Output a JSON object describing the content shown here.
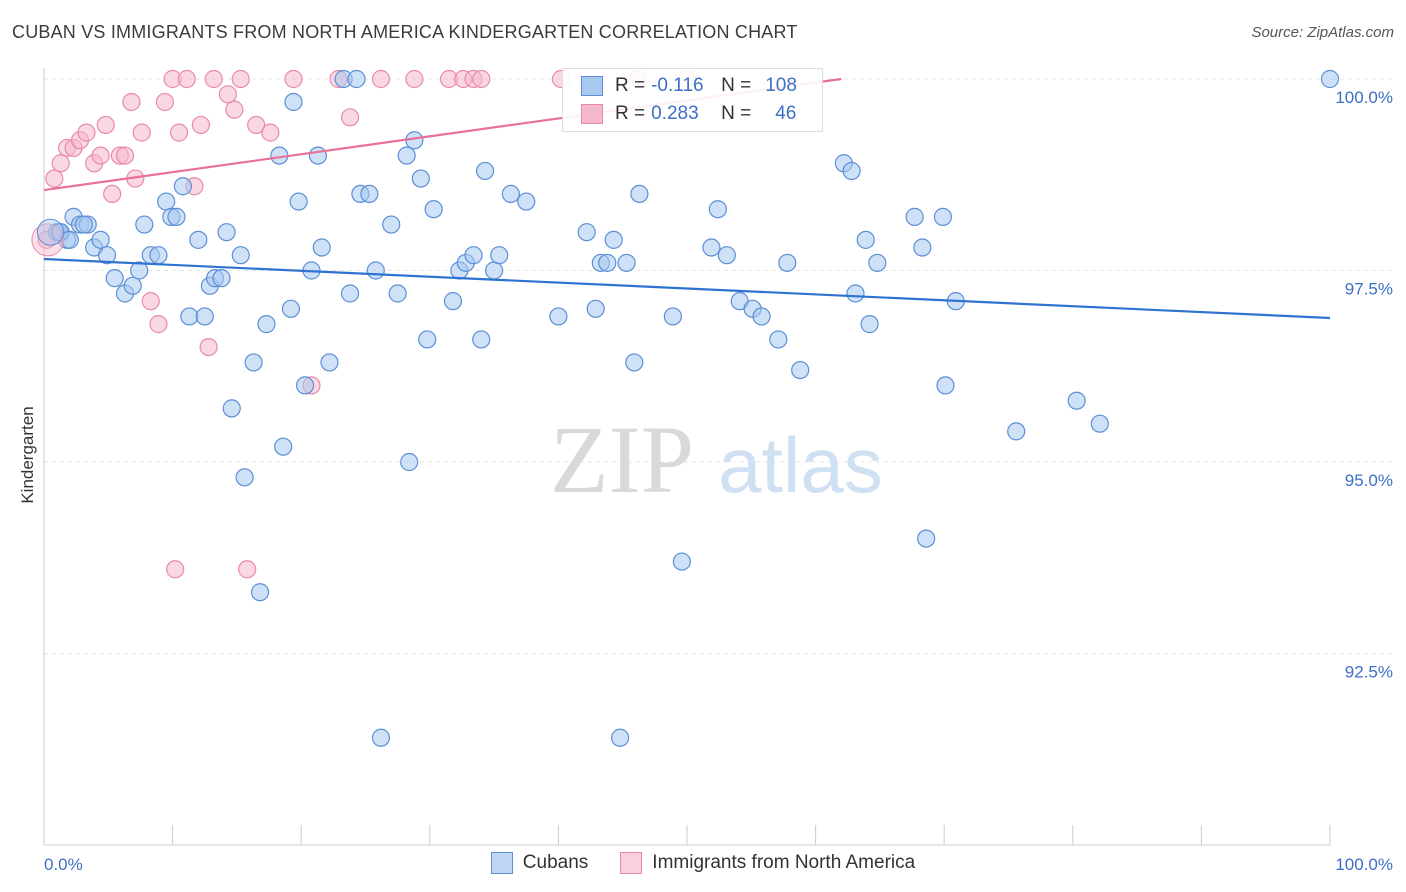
{
  "title": "CUBAN VS IMMIGRANTS FROM NORTH AMERICA KINDERGARTEN CORRELATION CHART",
  "source": "Source: ZipAtlas.com",
  "watermark": {
    "zip": "ZIP",
    "atlas": "atlas"
  },
  "legend": {
    "rows": [
      {
        "r_label": "R =",
        "r_value": "-0.116",
        "n_label": "N =",
        "n_value": "108"
      },
      {
        "r_label": "R =",
        "r_value": "0.283",
        "n_label": "N =",
        "n_value": "46"
      }
    ]
  },
  "bottom_legend": [
    "Cubans",
    "Immigrants from North America"
  ],
  "colors": {
    "blue_fill": "#a8c8f0",
    "blue_stroke": "#5b8fd6",
    "blue_line": "#2f73d0",
    "pink_fill": "#f6b8cc",
    "pink_stroke": "#e98aa8",
    "pink_line": "#e8709a",
    "axis_text": "#3d6fc4",
    "grid": "#e4e4e4"
  },
  "chart_data": {
    "type": "scatter",
    "title": "CUBAN VS IMMIGRANTS FROM NORTH AMERICA KINDERGARTEN CORRELATION CHART",
    "xlabel": "",
    "ylabel": "Kindergarten",
    "xlim": [
      0,
      100
    ],
    "ylim": [
      90.2,
      100.15
    ],
    "x_tick_labels": [
      "0.0%",
      "100.0%"
    ],
    "y_ticks": [
      100,
      97.5,
      95,
      92.5
    ],
    "y_tick_labels": [
      "100.0%",
      "97.5%",
      "95.0%",
      "92.5%"
    ],
    "grid": true,
    "legend_position": "top-center",
    "series": [
      {
        "name": "Cubans",
        "color": "#5b8fd6",
        "trend": {
          "x": [
            0,
            100
          ],
          "y": [
            97.65,
            96.88
          ]
        },
        "points": [
          [
            1.0,
            98.0
          ],
          [
            1.2,
            98.0
          ],
          [
            1.8,
            97.9
          ],
          [
            2.3,
            98.2
          ],
          [
            2.8,
            98.1
          ],
          [
            3.4,
            98.1
          ],
          [
            3.9,
            97.8
          ],
          [
            4.4,
            97.9
          ],
          [
            4.9,
            97.7
          ],
          [
            5.5,
            97.4
          ],
          [
            6.3,
            97.2
          ],
          [
            6.9,
            97.3
          ],
          [
            7.4,
            97.5
          ],
          [
            7.8,
            98.1
          ],
          [
            8.3,
            97.7
          ],
          [
            8.9,
            97.7
          ],
          [
            9.5,
            98.4
          ],
          [
            9.9,
            98.2
          ],
          [
            10.3,
            98.2
          ],
          [
            10.8,
            98.6
          ],
          [
            11.3,
            96.9
          ],
          [
            12.0,
            97.9
          ],
          [
            12.5,
            96.9
          ],
          [
            12.9,
            97.3
          ],
          [
            13.3,
            97.4
          ],
          [
            13.8,
            97.4
          ],
          [
            14.2,
            98.0
          ],
          [
            14.6,
            95.7
          ],
          [
            15.3,
            97.7
          ],
          [
            15.6,
            94.8
          ],
          [
            16.3,
            96.3
          ],
          [
            16.8,
            93.3
          ],
          [
            17.3,
            96.8
          ],
          [
            18.3,
            99.0
          ],
          [
            18.6,
            95.2
          ],
          [
            19.2,
            97.0
          ],
          [
            19.4,
            99.7
          ],
          [
            19.8,
            98.4
          ],
          [
            20.3,
            96.0
          ],
          [
            20.8,
            97.5
          ],
          [
            21.3,
            99.0
          ],
          [
            21.6,
            97.8
          ],
          [
            22.2,
            96.3
          ],
          [
            23.3,
            100.0
          ],
          [
            23.8,
            97.2
          ],
          [
            24.3,
            100.0
          ],
          [
            24.6,
            98.5
          ],
          [
            25.3,
            98.5
          ],
          [
            25.8,
            97.5
          ],
          [
            26.2,
            91.4
          ],
          [
            27.0,
            98.1
          ],
          [
            27.5,
            97.2
          ],
          [
            28.2,
            99.0
          ],
          [
            28.4,
            95.0
          ],
          [
            28.8,
            99.2
          ],
          [
            29.3,
            98.7
          ],
          [
            29.8,
            96.6
          ],
          [
            30.3,
            98.3
          ],
          [
            31.8,
            97.1
          ],
          [
            32.3,
            97.5
          ],
          [
            32.8,
            97.6
          ],
          [
            33.4,
            97.7
          ],
          [
            34.0,
            96.6
          ],
          [
            34.3,
            98.8
          ],
          [
            35.0,
            97.5
          ],
          [
            35.4,
            97.7
          ],
          [
            36.3,
            98.5
          ],
          [
            37.5,
            98.4
          ],
          [
            40.0,
            96.9
          ],
          [
            42.2,
            98.0
          ],
          [
            42.9,
            97.0
          ],
          [
            43.3,
            97.6
          ],
          [
            43.8,
            97.6
          ],
          [
            44.3,
            97.9
          ],
          [
            44.8,
            91.4
          ],
          [
            45.3,
            97.6
          ],
          [
            45.9,
            96.3
          ],
          [
            46.3,
            98.5
          ],
          [
            48.9,
            96.9
          ],
          [
            49.6,
            93.7
          ],
          [
            51.9,
            97.8
          ],
          [
            52.4,
            98.3
          ],
          [
            53.1,
            97.7
          ],
          [
            54.1,
            97.1
          ],
          [
            55.1,
            97.0
          ],
          [
            55.8,
            96.9
          ],
          [
            57.1,
            96.6
          ],
          [
            57.8,
            97.6
          ],
          [
            58.8,
            96.2
          ],
          [
            62.2,
            98.9
          ],
          [
            62.8,
            98.8
          ],
          [
            63.1,
            97.2
          ],
          [
            63.9,
            97.9
          ],
          [
            64.2,
            96.8
          ],
          [
            64.8,
            97.6
          ],
          [
            67.7,
            98.2
          ],
          [
            68.3,
            97.8
          ],
          [
            68.6,
            94.0
          ],
          [
            69.9,
            98.2
          ],
          [
            70.1,
            96.0
          ],
          [
            70.9,
            97.1
          ],
          [
            75.6,
            95.4
          ],
          [
            80.3,
            95.8
          ],
          [
            82.1,
            95.5
          ],
          [
            100.0,
            100.0
          ],
          [
            1.3,
            98.0
          ],
          [
            2.0,
            97.9
          ],
          [
            3.1,
            98.1
          ]
        ]
      },
      {
        "name": "Immigrants from North America",
        "color": "#e98aa8",
        "trend": {
          "x": [
            0,
            62
          ],
          "y": [
            98.55,
            100.0
          ]
        },
        "points": [
          [
            0.2,
            97.9
          ],
          [
            0.8,
            98.7
          ],
          [
            1.3,
            98.9
          ],
          [
            1.8,
            99.1
          ],
          [
            2.3,
            99.1
          ],
          [
            2.8,
            99.2
          ],
          [
            3.3,
            99.3
          ],
          [
            3.9,
            98.9
          ],
          [
            4.4,
            99.0
          ],
          [
            4.8,
            99.4
          ],
          [
            5.3,
            98.5
          ],
          [
            5.9,
            99.0
          ],
          [
            6.3,
            99.0
          ],
          [
            6.8,
            99.7
          ],
          [
            7.1,
            98.7
          ],
          [
            7.6,
            99.3
          ],
          [
            8.3,
            97.1
          ],
          [
            8.9,
            96.8
          ],
          [
            9.4,
            99.7
          ],
          [
            10.0,
            100.0
          ],
          [
            10.5,
            99.3
          ],
          [
            11.1,
            100.0
          ],
          [
            11.7,
            98.6
          ],
          [
            12.2,
            99.4
          ],
          [
            12.8,
            96.5
          ],
          [
            13.2,
            100.0
          ],
          [
            14.3,
            99.8
          ],
          [
            14.8,
            99.6
          ],
          [
            15.3,
            100.0
          ],
          [
            15.8,
            93.6
          ],
          [
            16.5,
            99.4
          ],
          [
            17.6,
            99.3
          ],
          [
            19.4,
            100.0
          ],
          [
            20.8,
            96.0
          ],
          [
            22.9,
            100.0
          ],
          [
            23.8,
            99.5
          ],
          [
            26.2,
            100.0
          ],
          [
            28.8,
            100.0
          ],
          [
            31.5,
            100.0
          ],
          [
            32.6,
            100.0
          ],
          [
            33.4,
            100.0
          ],
          [
            34.0,
            100.0
          ],
          [
            40.2,
            100.0
          ],
          [
            46.2,
            100.0
          ],
          [
            50.0,
            100.0
          ],
          [
            10.2,
            93.6
          ]
        ]
      }
    ]
  }
}
